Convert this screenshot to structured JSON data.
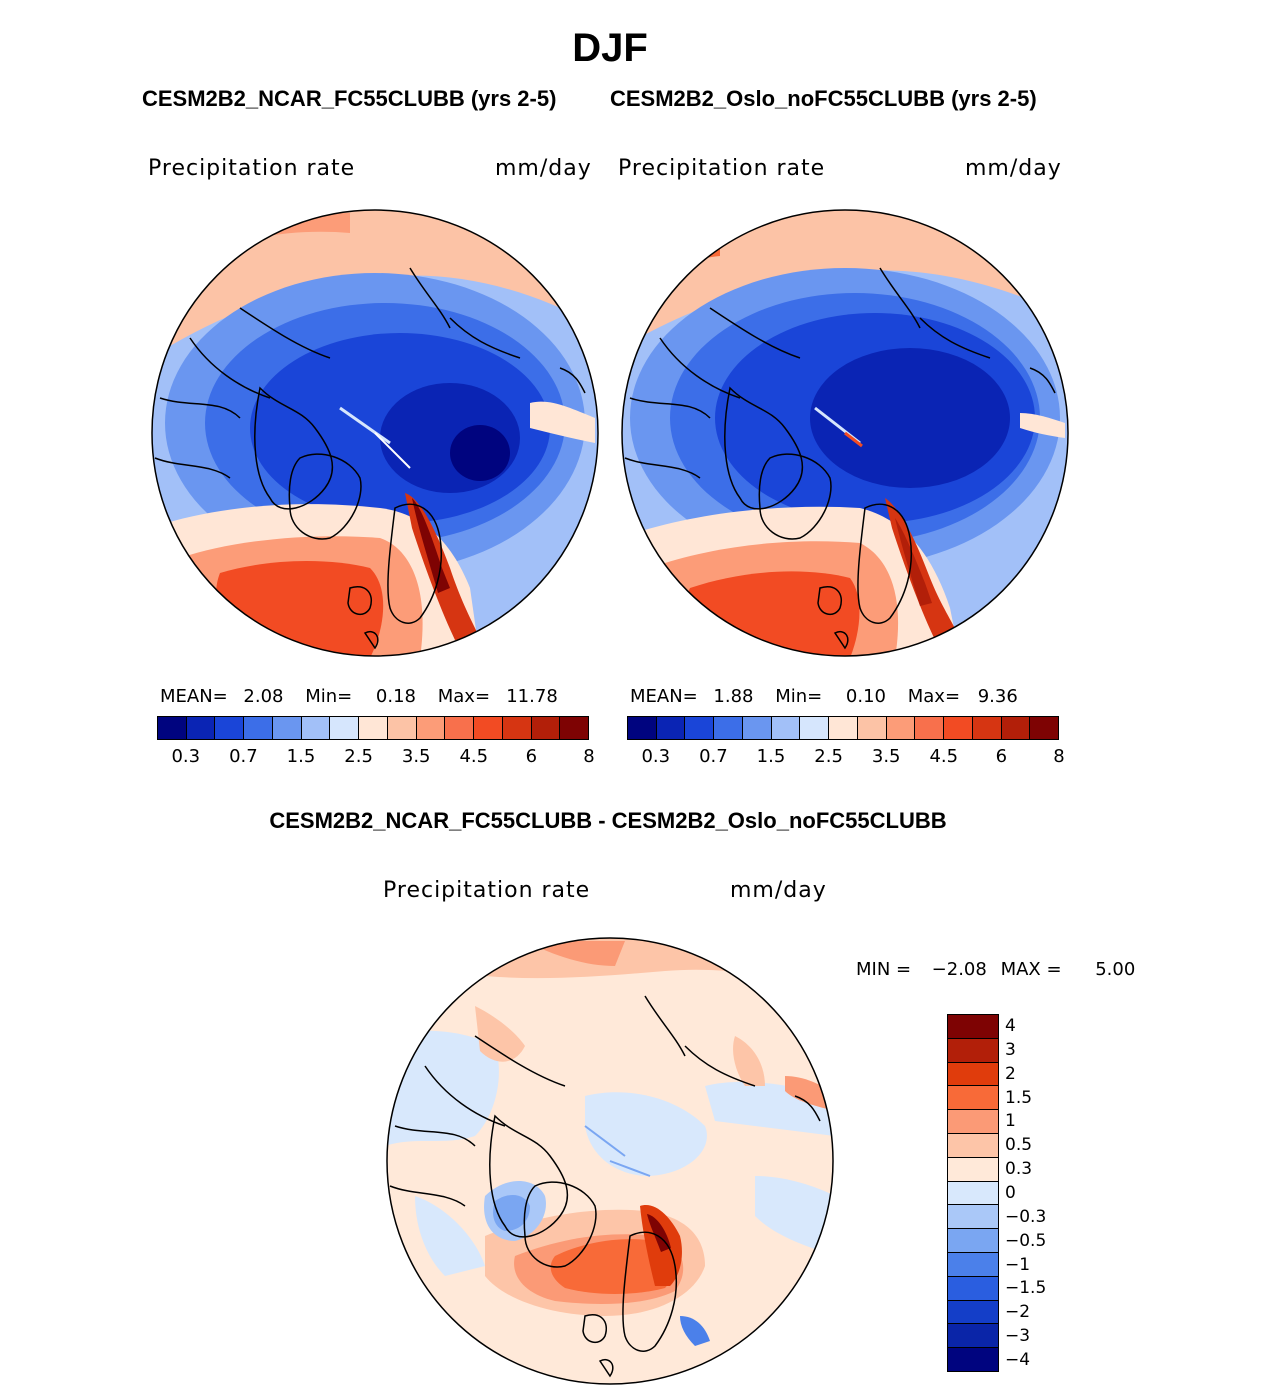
{
  "title": "DJF",
  "panels": {
    "left": {
      "case_title": "CESM2B2_NCAR_FC55CLUBB (yrs 2-5)",
      "variable": "Precipitation rate",
      "units": "mm/day",
      "mean_label": "MEAN=",
      "mean": "2.08",
      "min_label": "Min=",
      "min": "0.18",
      "max_label": "Max=",
      "max": "11.78"
    },
    "right": {
      "case_title": "CESM2B2_Oslo_noFC55CLUBB (yrs 2-5)",
      "variable": "Precipitation rate",
      "units": "mm/day",
      "mean_label": "MEAN=",
      "mean": "1.88",
      "min_label": "Min=",
      "min": "0.10",
      "max_label": "Max=",
      "max": "9.36"
    },
    "diff": {
      "case_title": "CESM2B2_NCAR_FC55CLUBB - CESM2B2_Oslo_noFC55CLUBB",
      "variable": "Precipitation rate",
      "units": "mm/day",
      "min_label": "MIN =",
      "min": "−2.08",
      "max_label": "MAX =",
      "max": "5.00"
    }
  },
  "colorbar_abs": {
    "colors": [
      "#00047f",
      "#0a24b4",
      "#1a45d8",
      "#3c6ee8",
      "#6a96f0",
      "#a2c0f8",
      "#d6e6fd",
      "#ffe6d6",
      "#fcc3a6",
      "#fc9c78",
      "#f8704c",
      "#f24b23",
      "#d63512",
      "#b21f09",
      "#7e0303"
    ],
    "labels": [
      "0.3",
      "0.7",
      "1.5",
      "2.5",
      "3.5",
      "4.5",
      "6",
      "8"
    ]
  },
  "colorbar_diff": {
    "colors": [
      "#7e0303",
      "#b21f09",
      "#e03c0c",
      "#f86a38",
      "#fb9a76",
      "#fdc5a8",
      "#ffe9d9",
      "#d8e8fc",
      "#aac8f8",
      "#7aa6f2",
      "#4b80ea",
      "#2a5ee0",
      "#143ec8",
      "#0a25a8",
      "#00047f"
    ],
    "labels": [
      "4",
      "3",
      "2",
      "1.5",
      "1",
      "0.5",
      "0.3",
      "0",
      "−0.3",
      "−0.5",
      "−1",
      "−1.5",
      "−2",
      "−3",
      "−4"
    ]
  },
  "colors": {
    "land_outline": "#000000",
    "polar_boundary": "#000000"
  }
}
